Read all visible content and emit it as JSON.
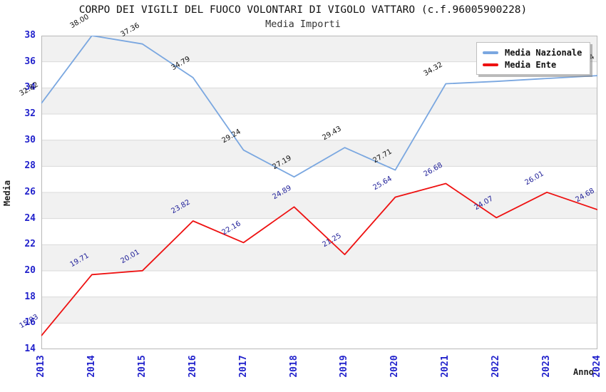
{
  "page": {
    "background": "#ffffff"
  },
  "chart_data": {
    "type": "line",
    "title": "CORPO DEI VIGILI DEL FUOCO VOLONTARI DI VIGOLO VATTARO (c.f.96005900228)",
    "subtitle": "Media Importi",
    "xlabel": "Anno",
    "ylabel": "Media",
    "x": [
      "2013",
      "2014",
      "2015",
      "2016",
      "2017",
      "2018",
      "2019",
      "2020",
      "2021",
      "2022",
      "2023",
      "2024"
    ],
    "ylim": [
      14,
      38
    ],
    "ytick_step": 2,
    "grid": true,
    "legend_position": "top-right",
    "band_colors": [
      "#f1f1f1",
      "#ffffff"
    ],
    "grid_color": "#dadada",
    "border_color": "#b8b8b8",
    "tick_label_color": "#2222cc",
    "series": [
      {
        "name": "Media Nazionale",
        "color": "#7aa7e0",
        "label_color": "#111111",
        "values": [
          32.82,
          38.0,
          37.36,
          34.79,
          29.24,
          27.19,
          29.43,
          27.71,
          34.32,
          34.5,
          34.72,
          34.94
        ],
        "labels": [
          "32.82",
          "38.00",
          "37.36",
          "34.79",
          "29.24",
          "27.19",
          "29.43",
          "27.71",
          "34.32",
          "",
          "",
          "34.94"
        ]
      },
      {
        "name": "Media Ente",
        "color": "#ee1111",
        "label_color": "#202099",
        "values": [
          15.03,
          19.71,
          20.01,
          23.82,
          22.16,
          24.89,
          21.25,
          25.64,
          26.68,
          24.07,
          26.01,
          24.68
        ],
        "labels": [
          "15.03",
          "19.71",
          "20.01",
          "23.82",
          "22.16",
          "24.89",
          "21.25",
          "25.64",
          "26.68",
          "24.07",
          "26.01",
          "24.68"
        ]
      }
    ]
  }
}
